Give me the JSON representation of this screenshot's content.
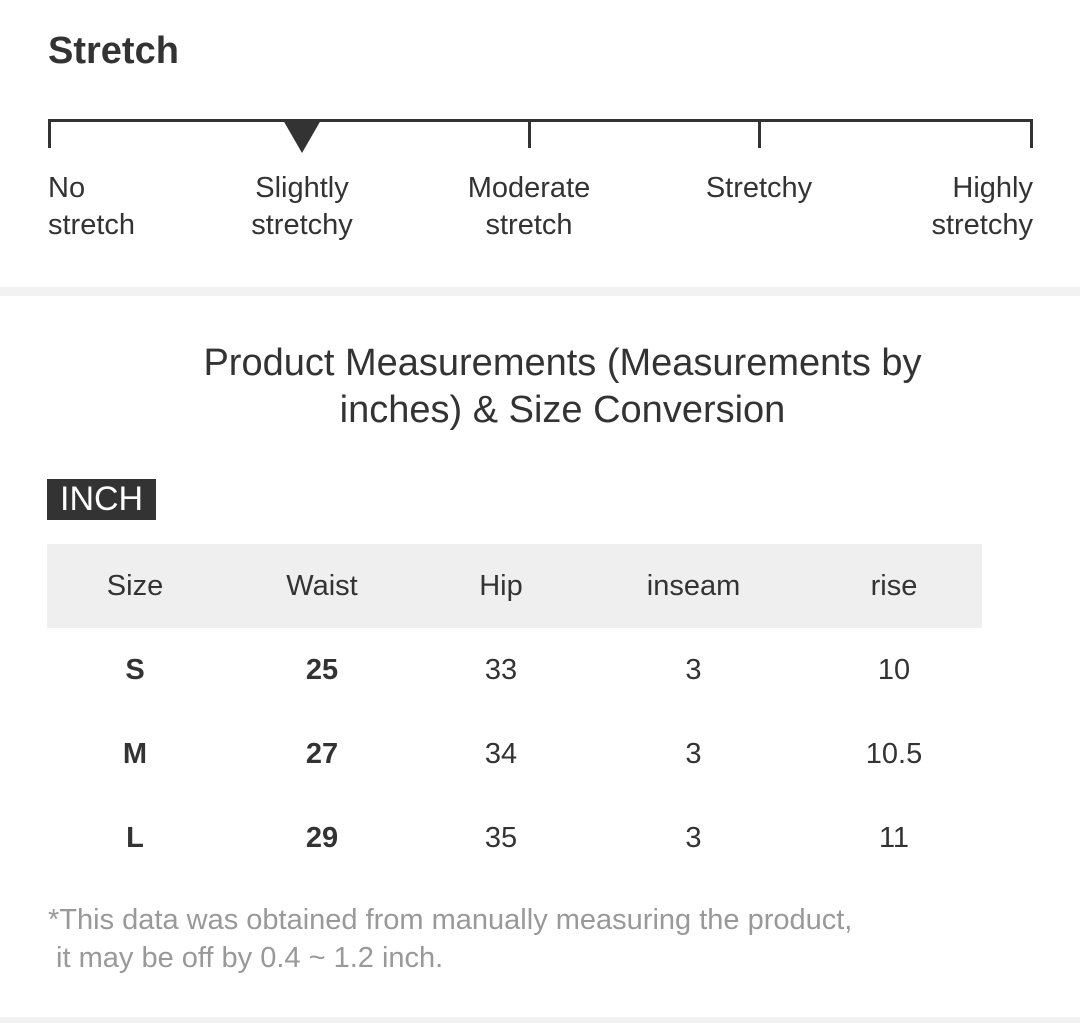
{
  "stretch": {
    "title": "Stretch",
    "selected_index": 1,
    "levels": [
      "No\nstretch",
      "Slightly\nstretchy",
      "Moderate\nstretch",
      "Stretchy",
      "Highly\nstretchy"
    ]
  },
  "measurements": {
    "title": "Product Measurements (Measurements by inches) & Size Conversion",
    "unit_badge": "INCH",
    "headers": [
      "Size",
      "Waist",
      "Hip",
      "inseam",
      "rise"
    ],
    "rows": [
      [
        "S",
        "25",
        "33",
        "3",
        "10"
      ],
      [
        "M",
        "27",
        "34",
        "3",
        "10.5"
      ],
      [
        "L",
        "29",
        "35",
        "3",
        "11"
      ]
    ],
    "footnote_line1": "*This data was obtained from manually measuring the product,",
    "footnote_line2": " it may be off by 0.4 ~ 1.2 inch."
  },
  "colors": {
    "text": "#333333",
    "header_bg": "#efefef",
    "badge_bg": "#333333",
    "footnote": "#999999"
  }
}
